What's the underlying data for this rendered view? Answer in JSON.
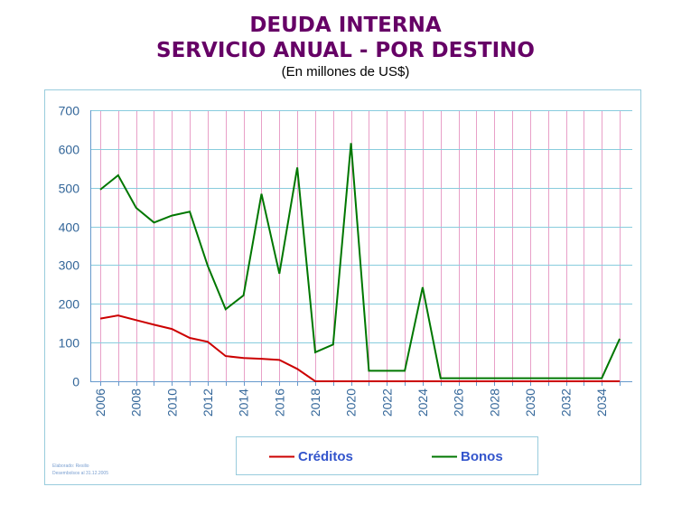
{
  "title_lines": [
    "DEUDA INTERNA",
    "SERVICIO ANUAL - POR DESTINO",
    "(En millones de US$)"
  ],
  "footer_lines": [
    "Elaborado: Resilio",
    "Desembolsos al 31.12.2005"
  ],
  "colors": {
    "creditos": "#cc0000",
    "bonos": "#007700",
    "frame": "#99ccdd",
    "grid_h": "#88ccdd",
    "grid_v": "#e8a0c8",
    "axis": "#6699cc"
  },
  "chart_data": {
    "type": "line",
    "title": "DEUDA INTERNA",
    "subtitle": "SERVICIO ANUAL - POR DESTINO",
    "ylabel": "(En millones de US$)",
    "xlabel": "",
    "ylim": [
      0,
      700
    ],
    "yticks": [
      0,
      100,
      200,
      300,
      400,
      500,
      600,
      700
    ],
    "xlim": [
      2005.5,
      2035.5
    ],
    "xticks": [
      2006,
      2008,
      2010,
      2012,
      2014,
      2016,
      2018,
      2020,
      2022,
      2024,
      2026,
      2028,
      2030,
      2032,
      2034
    ],
    "grid": true,
    "legend_position": "bottom",
    "x": [
      2006,
      2007,
      2008,
      2009,
      2010,
      2011,
      2012,
      2013,
      2014,
      2015,
      2016,
      2017,
      2018,
      2019,
      2020,
      2021,
      2022,
      2023,
      2024,
      2025,
      2026,
      2027,
      2028,
      2029,
      2030,
      2031,
      2032,
      2033,
      2034,
      2035
    ],
    "series": [
      {
        "name": "Créditos",
        "color": "#cc0000",
        "values": [
          162,
          170,
          158,
          146,
          135,
          112,
          102,
          65,
          60,
          58,
          55,
          32,
          0,
          0,
          0,
          0,
          0,
          0,
          0,
          0,
          0,
          0,
          0,
          0,
          0,
          0,
          0,
          0,
          0,
          0
        ]
      },
      {
        "name": "Bonos",
        "color": "#007700",
        "values": [
          495,
          532,
          448,
          410,
          428,
          438,
          298,
          186,
          222,
          484,
          278,
          552,
          75,
          95,
          615,
          27,
          27,
          27,
          243,
          8,
          8,
          8,
          8,
          8,
          8,
          8,
          8,
          8,
          8,
          110
        ]
      }
    ]
  }
}
